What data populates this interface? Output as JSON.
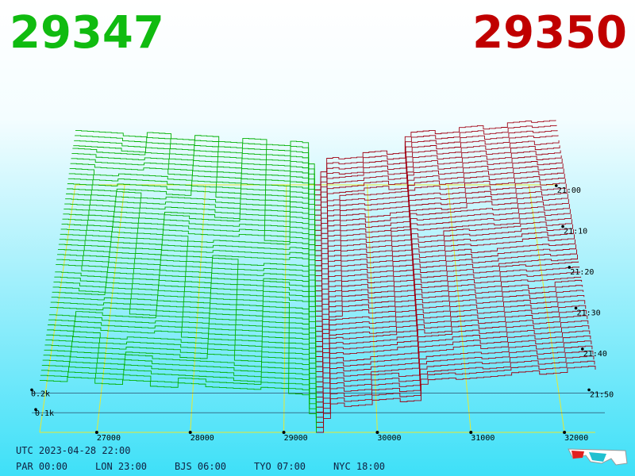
{
  "chart_data": {
    "type": "depth3d",
    "bid": 29347,
    "ask": 29350,
    "xlim": [
      26390,
      32330
    ],
    "xticks": [
      27000,
      28000,
      29000,
      30000,
      31000,
      32000
    ],
    "ylim": [
      0,
      250
    ],
    "yticks": [
      {
        "value": 100,
        "label": "0.1k"
      },
      {
        "value": 200,
        "label": "0.2k"
      }
    ],
    "time_labels": [
      "21:00",
      "21:10",
      "21:20",
      "21:30",
      "21:40",
      "21:50"
    ],
    "bid_color": "#00b000",
    "ask_color": "#a00012",
    "grid_color": "#e8e830"
  },
  "footer": {
    "utc": "UTC 2023-04-28 22:00",
    "zones": [
      "PAR 00:00",
      "LON 23:00",
      "BJS 06:00",
      "TYO 07:00",
      "NYC 18:00"
    ]
  }
}
